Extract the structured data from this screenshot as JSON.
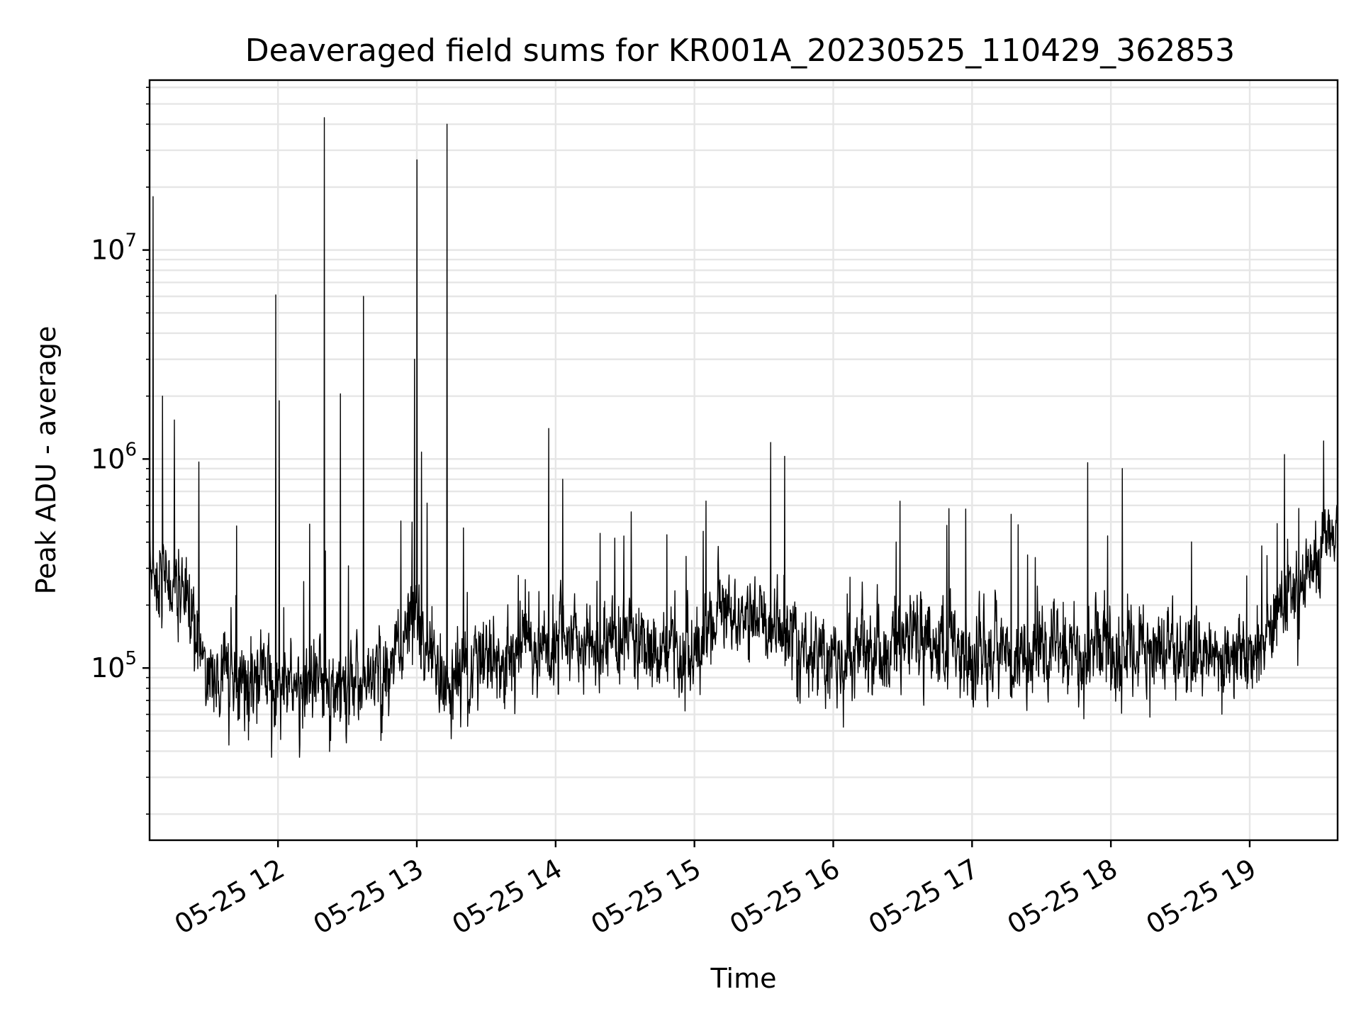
{
  "chart_data": {
    "type": "line",
    "title": "Deaveraged field sums for KR001A_20230525_110429_362853",
    "xlabel": "Time",
    "ylabel": "Peak ADU - average",
    "x_axis": {
      "kind": "datetime",
      "start": "2023-05-25T11:04:29",
      "end": "2023-05-25T19:38:00",
      "tick_values": [
        "2023-05-25T12:00:00",
        "2023-05-25T13:00:00",
        "2023-05-25T14:00:00",
        "2023-05-25T15:00:00",
        "2023-05-25T16:00:00",
        "2023-05-25T17:00:00",
        "2023-05-25T18:00:00",
        "2023-05-25T19:00:00"
      ],
      "tick_labels": [
        "05-25 12",
        "05-25 13",
        "05-25 14",
        "05-25 15",
        "05-25 16",
        "05-25 17",
        "05-25 18",
        "05-25 19"
      ]
    },
    "y_axis": {
      "scale": "log",
      "ylim": [
        15000,
        65000000
      ],
      "tick_values": [
        100000,
        1000000,
        10000000
      ],
      "tick_labels": [
        {
          "base": "10",
          "exp": "5"
        },
        {
          "base": "10",
          "exp": "6"
        },
        {
          "base": "10",
          "exp": "7"
        }
      ]
    },
    "grid": true,
    "line_color": "#000000",
    "series": [
      {
        "baseline_profile": [
          {
            "x": "2023-05-25T11:04:29",
            "y": 300000
          },
          {
            "x": "2023-05-25T11:20:00",
            "y": 220000
          },
          {
            "x": "2023-05-25T11:30:00",
            "y": 90000
          },
          {
            "x": "2023-05-25T12:00:00",
            "y": 85000
          },
          {
            "x": "2023-05-25T12:45:00",
            "y": 85000
          },
          {
            "x": "2023-05-25T13:00:00",
            "y": 180000
          },
          {
            "x": "2023-05-25T13:10:00",
            "y": 80000
          },
          {
            "x": "2023-05-25T13:30:00",
            "y": 110000
          },
          {
            "x": "2023-05-25T14:00:00",
            "y": 130000
          },
          {
            "x": "2023-05-25T15:00:00",
            "y": 120000
          },
          {
            "x": "2023-05-25T15:10:00",
            "y": 200000
          },
          {
            "x": "2023-05-25T15:30:00",
            "y": 160000
          },
          {
            "x": "2023-05-25T16:00:00",
            "y": 110000
          },
          {
            "x": "2023-05-25T16:30:00",
            "y": 140000
          },
          {
            "x": "2023-05-25T17:00:00",
            "y": 115000
          },
          {
            "x": "2023-05-25T18:00:00",
            "y": 120000
          },
          {
            "x": "2023-05-25T19:00:00",
            "y": 110000
          },
          {
            "x": "2023-05-25T19:15:00",
            "y": 180000
          },
          {
            "x": "2023-05-25T19:38:00",
            "y": 500000
          }
        ],
        "spikes": [
          {
            "x": "2023-05-25T11:06:00",
            "y": 18000000
          },
          {
            "x": "2023-05-25T11:10:00",
            "y": 2000000
          },
          {
            "x": "2023-05-25T11:59:00",
            "y": 6100000
          },
          {
            "x": "2023-05-25T12:00:30",
            "y": 1900000
          },
          {
            "x": "2023-05-25T12:20:00",
            "y": 43000000
          },
          {
            "x": "2023-05-25T12:27:00",
            "y": 2050000
          },
          {
            "x": "2023-05-25T12:37:00",
            "y": 6000000
          },
          {
            "x": "2023-05-25T12:59:00",
            "y": 3000000
          },
          {
            "x": "2023-05-25T13:00:00",
            "y": 27000000
          },
          {
            "x": "2023-05-25T13:02:00",
            "y": 1080000
          },
          {
            "x": "2023-05-25T13:13:00",
            "y": 40000000
          },
          {
            "x": "2023-05-25T13:57:00",
            "y": 1400000
          },
          {
            "x": "2023-05-25T14:03:00",
            "y": 800000
          },
          {
            "x": "2023-05-25T15:33:00",
            "y": 1200000
          },
          {
            "x": "2023-05-25T15:39:00",
            "y": 1030000
          },
          {
            "x": "2023-05-25T17:50:00",
            "y": 960000
          },
          {
            "x": "2023-05-25T18:05:00",
            "y": 900000
          },
          {
            "x": "2023-05-25T19:15:00",
            "y": 1050000
          },
          {
            "x": "2023-05-25T19:32:00",
            "y": 1220000
          }
        ]
      }
    ]
  }
}
